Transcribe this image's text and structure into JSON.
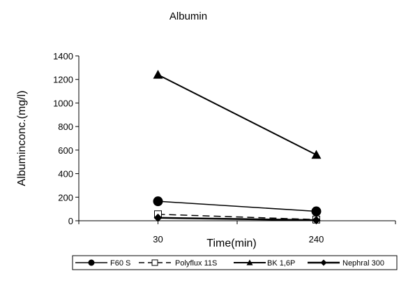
{
  "chart_data": {
    "type": "line",
    "title": "Albumin",
    "xlabel": "Time(min)",
    "ylabel": "Albuminconc.(mg/l)",
    "categories": [
      "30",
      "240"
    ],
    "ylim": [
      0,
      1400
    ],
    "yticks": [
      "0",
      "200",
      "400",
      "600",
      "800",
      "1000",
      "1200",
      "1400"
    ],
    "grid": false,
    "legend_position": "bottom",
    "series": [
      {
        "name": "F60 S",
        "values": [
          165,
          80
        ],
        "marker": "circle",
        "dash": "solid",
        "color": "#000000"
      },
      {
        "name": "Polyflux 11S",
        "values": [
          55,
          10
        ],
        "marker": "open-square",
        "dash": "dashed",
        "color": "#000000"
      },
      {
        "name": "BK 1,6P",
        "values": [
          1240,
          560
        ],
        "marker": "triangle",
        "dash": "solid",
        "color": "#000000"
      },
      {
        "name": "Nephral 300",
        "values": [
          25,
          5
        ],
        "marker": "diamond",
        "dash": "solid",
        "color": "#000000"
      }
    ]
  }
}
